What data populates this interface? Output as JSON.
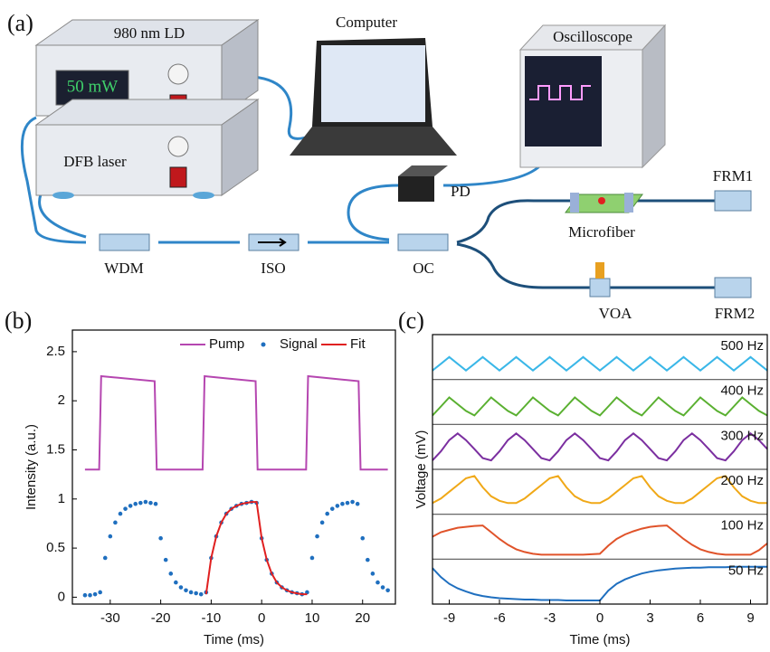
{
  "diagram": {
    "panel_label": "(a)",
    "ld_title": "980 nm LD",
    "ld_power": "50 mW",
    "dfb_title": "DFB laser",
    "computer": "Computer",
    "oscilloscope": "Oscilloscope",
    "pd": "PD",
    "frm1": "FRM1",
    "microfiber": "Microfiber",
    "wdm": "WDM",
    "iso": "ISO",
    "oc": "OC",
    "voa": "VOA",
    "frm2": "FRM2"
  },
  "chart_data": [
    {
      "type": "line",
      "panel_label": "(b)",
      "x_label": "Time (ms)",
      "y_label": "Intensity (a.u.)",
      "xlim": [
        -37.5,
        26.5
      ],
      "ylim": [
        -0.07,
        2.72
      ],
      "xticks": [
        -30,
        -20,
        -10,
        0,
        10,
        20
      ],
      "yticks": [
        0,
        0.5,
        1,
        1.5,
        2,
        2.5
      ],
      "legend": "upper right",
      "series": [
        {
          "name": "Pump",
          "color": "#b546b0",
          "mode": "line",
          "x": [
            -35,
            -32.2,
            -31.8,
            -21.2,
            -20.8,
            -11.7,
            -11.3,
            -1.2,
            -0.8,
            8.8,
            9.2,
            19.2,
            19.6,
            25
          ],
          "values": [
            1.3,
            1.3,
            2.25,
            2.2,
            1.3,
            1.3,
            2.25,
            2.2,
            1.3,
            1.3,
            2.25,
            2.2,
            1.3,
            1.3
          ]
        },
        {
          "name": "Signal",
          "color": "#1f6fbf",
          "mode": "markers",
          "x": [
            -35,
            -34,
            -33,
            -32,
            -31,
            -30,
            -29,
            -28,
            -27,
            -26,
            -25,
            -24,
            -23,
            -22,
            -21,
            -20,
            -19,
            -18,
            -17,
            -16,
            -15,
            -14,
            -13,
            -12,
            -11,
            -10,
            -9,
            -8,
            -7,
            -6,
            -5,
            -4,
            -3,
            -2,
            -1,
            0,
            1,
            2,
            3,
            4,
            5,
            6,
            7,
            8,
            9,
            10,
            11,
            12,
            13,
            14,
            15,
            16,
            17,
            18,
            19,
            20,
            21,
            22,
            23,
            24,
            25
          ],
          "values": [
            0.02,
            0.02,
            0.03,
            0.05,
            0.4,
            0.62,
            0.76,
            0.85,
            0.9,
            0.93,
            0.95,
            0.96,
            0.97,
            0.96,
            0.95,
            0.6,
            0.38,
            0.24,
            0.15,
            0.1,
            0.07,
            0.05,
            0.04,
            0.03,
            0.05,
            0.4,
            0.62,
            0.76,
            0.85,
            0.9,
            0.93,
            0.95,
            0.96,
            0.97,
            0.96,
            0.6,
            0.38,
            0.24,
            0.15,
            0.1,
            0.07,
            0.05,
            0.04,
            0.03,
            0.05,
            0.4,
            0.62,
            0.76,
            0.85,
            0.9,
            0.93,
            0.95,
            0.96,
            0.97,
            0.95,
            0.6,
            0.38,
            0.24,
            0.15,
            0.1,
            0.07
          ]
        },
        {
          "name": "Fit",
          "color": "#e02020",
          "mode": "line",
          "x": [
            -11,
            -10,
            -9,
            -8,
            -7,
            -6,
            -5,
            -4,
            -3,
            -2,
            -1,
            0,
            1,
            2,
            3,
            4,
            5,
            6,
            7,
            8,
            9
          ],
          "values": [
            0.03,
            0.4,
            0.62,
            0.76,
            0.85,
            0.9,
            0.93,
            0.95,
            0.96,
            0.97,
            0.97,
            0.6,
            0.38,
            0.24,
            0.15,
            0.1,
            0.07,
            0.05,
            0.04,
            0.03,
            0.03
          ]
        }
      ]
    },
    {
      "type": "ridgeline",
      "panel_label": "(c)",
      "x_label": "Time (ms)",
      "y_label": "Voltage (mV)",
      "xlim": [
        -10,
        10
      ],
      "ylim": [
        0,
        1
      ],
      "xticks": [
        -9,
        -6,
        -3,
        0,
        3,
        6,
        9
      ],
      "x": [
        -10,
        -9.5,
        -9,
        -8.5,
        -8,
        -7.5,
        -7,
        -6.5,
        -6,
        -5.5,
        -5,
        -4.5,
        -4,
        -3.5,
        -3,
        -2.5,
        -2,
        -1.5,
        -1,
        -0.5,
        0,
        0.5,
        1,
        1.5,
        2,
        2.5,
        3,
        3.5,
        4,
        4.5,
        5,
        5.5,
        6,
        6.5,
        7,
        7.5,
        8,
        8.5,
        9,
        9.5,
        10
      ],
      "series": [
        {
          "name": "500 Hz",
          "color": "#3ab7e8",
          "values": [
            0.2,
            0.35,
            0.5,
            0.35,
            0.2,
            0.35,
            0.5,
            0.35,
            0.2,
            0.35,
            0.5,
            0.35,
            0.2,
            0.35,
            0.5,
            0.35,
            0.2,
            0.35,
            0.5,
            0.35,
            0.2,
            0.35,
            0.5,
            0.35,
            0.2,
            0.35,
            0.5,
            0.35,
            0.2,
            0.35,
            0.5,
            0.35,
            0.2,
            0.35,
            0.5,
            0.35,
            0.2,
            0.35,
            0.5,
            0.35,
            0.2
          ]
        },
        {
          "name": "400 Hz",
          "color": "#5ab031",
          "values": [
            0.2,
            0.4,
            0.6,
            0.45,
            0.3,
            0.2,
            0.4,
            0.6,
            0.45,
            0.3,
            0.2,
            0.4,
            0.6,
            0.45,
            0.3,
            0.2,
            0.4,
            0.6,
            0.45,
            0.3,
            0.2,
            0.4,
            0.6,
            0.45,
            0.3,
            0.2,
            0.4,
            0.6,
            0.45,
            0.3,
            0.2,
            0.4,
            0.6,
            0.45,
            0.3,
            0.2,
            0.4,
            0.6,
            0.45,
            0.3,
            0.2
          ]
        },
        {
          "name": "300 Hz",
          "color": "#7b2fa0",
          "values": [
            0.2,
            0.4,
            0.65,
            0.8,
            0.65,
            0.45,
            0.25,
            0.2,
            0.4,
            0.65,
            0.8,
            0.65,
            0.45,
            0.25,
            0.2,
            0.4,
            0.65,
            0.8,
            0.65,
            0.45,
            0.25,
            0.2,
            0.4,
            0.65,
            0.8,
            0.65,
            0.45,
            0.25,
            0.2,
            0.4,
            0.65,
            0.8,
            0.65,
            0.45,
            0.25,
            0.2,
            0.4,
            0.65,
            0.8,
            0.65,
            0.45
          ]
        },
        {
          "name": "200 Hz",
          "color": "#f0a817",
          "values": [
            0.25,
            0.35,
            0.5,
            0.65,
            0.8,
            0.85,
            0.6,
            0.4,
            0.3,
            0.25,
            0.25,
            0.35,
            0.5,
            0.65,
            0.8,
            0.85,
            0.6,
            0.4,
            0.3,
            0.25,
            0.25,
            0.35,
            0.5,
            0.65,
            0.8,
            0.85,
            0.6,
            0.4,
            0.3,
            0.25,
            0.25,
            0.35,
            0.5,
            0.65,
            0.8,
            0.85,
            0.6,
            0.4,
            0.3,
            0.25,
            0.25
          ]
        },
        {
          "name": "100 Hz",
          "color": "#e0532a",
          "values": [
            0.5,
            0.6,
            0.65,
            0.7,
            0.72,
            0.74,
            0.75,
            0.6,
            0.45,
            0.32,
            0.22,
            0.16,
            0.12,
            0.1,
            0.1,
            0.1,
            0.1,
            0.1,
            0.1,
            0.11,
            0.12,
            0.3,
            0.45,
            0.55,
            0.62,
            0.68,
            0.72,
            0.74,
            0.75,
            0.6,
            0.45,
            0.32,
            0.22,
            0.16,
            0.12,
            0.1,
            0.1,
            0.1,
            0.1,
            0.2,
            0.35
          ]
        },
        {
          "name": "50 Hz",
          "color": "#1f6fbf",
          "values": [
            0.8,
            0.6,
            0.45,
            0.35,
            0.28,
            0.22,
            0.18,
            0.15,
            0.13,
            0.12,
            0.11,
            0.1,
            0.1,
            0.09,
            0.09,
            0.09,
            0.08,
            0.08,
            0.08,
            0.08,
            0.08,
            0.3,
            0.45,
            0.55,
            0.62,
            0.68,
            0.72,
            0.75,
            0.77,
            0.79,
            0.8,
            0.81,
            0.81,
            0.82,
            0.82,
            0.82,
            0.83,
            0.83,
            0.83,
            0.83,
            0.83
          ]
        }
      ]
    }
  ]
}
